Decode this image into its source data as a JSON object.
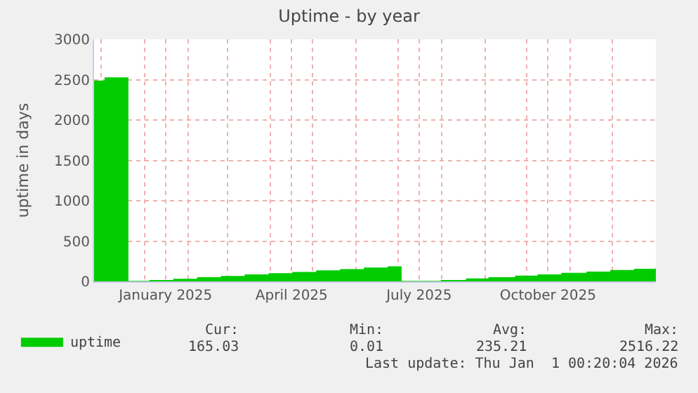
{
  "chart_data": {
    "type": "area",
    "title": "Uptime - by year",
    "ylabel": "uptime in days",
    "x": [
      "2024-11-26",
      "2024-12-04",
      "2024-12-20",
      "2025-01-05",
      "2025-01-22",
      "2025-02-08",
      "2025-02-25",
      "2025-03-14",
      "2025-03-31",
      "2025-04-17",
      "2025-05-04",
      "2025-05-21",
      "2025-06-07",
      "2025-06-24",
      "2025-07-03",
      "2025-08-01",
      "2025-08-19",
      "2025-09-04",
      "2025-09-23",
      "2025-10-09",
      "2025-10-26",
      "2025-11-13",
      "2025-11-30",
      "2025-12-17",
      "2026-01-01"
    ],
    "series": [
      {
        "name": "uptime",
        "color": "#00cc00",
        "values": [
          2480,
          2520,
          0,
          10,
          25,
          45,
          60,
          80,
          95,
          110,
          130,
          145,
          165,
          180,
          0,
          10,
          30,
          45,
          65,
          80,
          100,
          115,
          135,
          150,
          165
        ]
      }
    ],
    "xlim": [
      "2024-11-26",
      "2026-01-01"
    ],
    "xticks": [
      {
        "value": "2024-12-01",
        "label": null
      },
      {
        "value": "2025-01-01",
        "label": null
      },
      {
        "value": "2025-01-16",
        "label": "January 2025"
      },
      {
        "value": "2025-02-01",
        "label": null
      },
      {
        "value": "2025-03-01",
        "label": null
      },
      {
        "value": "2025-04-01",
        "label": null
      },
      {
        "value": "2025-04-16",
        "label": "April 2025"
      },
      {
        "value": "2025-05-01",
        "label": null
      },
      {
        "value": "2025-06-01",
        "label": null
      },
      {
        "value": "2025-07-01",
        "label": null
      },
      {
        "value": "2025-07-16",
        "label": "July 2025"
      },
      {
        "value": "2025-08-01",
        "label": null
      },
      {
        "value": "2025-09-01",
        "label": null
      },
      {
        "value": "2025-10-01",
        "label": null
      },
      {
        "value": "2025-10-16",
        "label": "October 2025"
      },
      {
        "value": "2025-11-01",
        "label": null
      },
      {
        "value": "2025-12-01",
        "label": null
      }
    ],
    "ylim": [
      0,
      3000
    ],
    "yticks": [
      0,
      500,
      1000,
      1500,
      2000,
      2500,
      3000
    ],
    "grid": true,
    "legend": "bottom left",
    "annotations": [
      "Cur:",
      "165.03",
      "Min:",
      "0.01",
      "Avg:",
      "235.21",
      "Max:",
      "2516.22",
      "Last update: Thu Jan  1 00:20:04 2026"
    ]
  }
}
